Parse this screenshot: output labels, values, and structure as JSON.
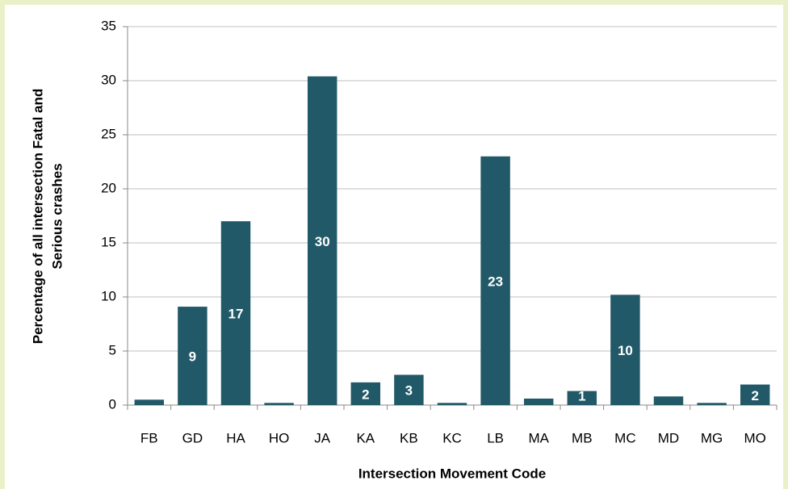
{
  "chart_data": {
    "type": "bar",
    "x_label": "Intersection Movement Code",
    "y_label_lines": [
      "Percentage of all intersection Fatal and",
      "Serious crashes"
    ],
    "categories": [
      "FB",
      "GD",
      "HA",
      "HO",
      "JA",
      "KA",
      "KB",
      "KC",
      "LB",
      "MA",
      "MB",
      "MC",
      "MD",
      "MG",
      "MO"
    ],
    "values": [
      0.5,
      9.1,
      17,
      0.2,
      30.4,
      2.1,
      2.8,
      0.2,
      23,
      0.6,
      1.3,
      10.2,
      0.8,
      0.2,
      1.9
    ],
    "value_labels": [
      null,
      "9",
      "17",
      null,
      "30",
      "2",
      "3",
      null,
      "23",
      null,
      "1",
      "10",
      null,
      null,
      "2"
    ],
    "color": "#215968",
    "ylim": [
      0,
      35
    ],
    "yticks": [
      0,
      5,
      10,
      15,
      20,
      25,
      30,
      35
    ],
    "grid": true
  }
}
